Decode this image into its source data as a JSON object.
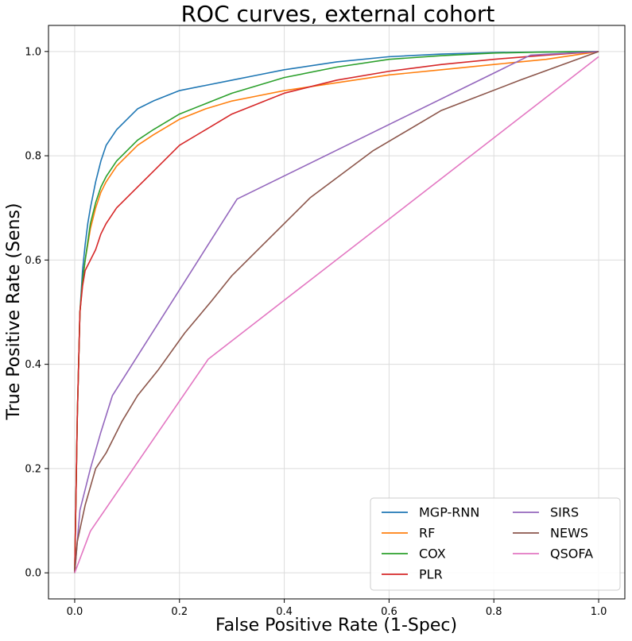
{
  "chart_data": {
    "type": "line",
    "title": "ROC curves, external cohort",
    "xlabel": "False Positive Rate (1-Spec)",
    "ylabel": "True Positive Rate (Sens)",
    "xlim": [
      -0.05,
      1.05
    ],
    "ylim": [
      -0.05,
      1.05
    ],
    "xticks": [
      0.0,
      0.2,
      0.4,
      0.6,
      0.8,
      1.0
    ],
    "xtick_labels": [
      "0.0",
      "0.2",
      "0.4",
      "0.6",
      "0.8",
      "1.0"
    ],
    "yticks": [
      0.0,
      0.2,
      0.4,
      0.6,
      0.8,
      1.0
    ],
    "ytick_labels": [
      "0.0",
      "0.2",
      "0.4",
      "0.6",
      "0.8",
      "1.0"
    ],
    "grid": true,
    "legend_position": "lower-right",
    "legend_columns": 2,
    "series": [
      {
        "name": "MGP-RNN",
        "color": "#1f77b4",
        "x": [
          0.0,
          0.005,
          0.01,
          0.015,
          0.02,
          0.025,
          0.03,
          0.04,
          0.05,
          0.06,
          0.08,
          0.1,
          0.12,
          0.15,
          0.2,
          0.25,
          0.3,
          0.35,
          0.4,
          0.5,
          0.6,
          0.7,
          0.8,
          0.9,
          1.0
        ],
        "y": [
          0.0,
          0.3,
          0.5,
          0.58,
          0.63,
          0.67,
          0.7,
          0.75,
          0.79,
          0.82,
          0.85,
          0.87,
          0.89,
          0.905,
          0.925,
          0.935,
          0.945,
          0.955,
          0.965,
          0.98,
          0.99,
          0.995,
          0.998,
          0.999,
          1.0
        ]
      },
      {
        "name": "RF",
        "color": "#ff7f0e",
        "x": [
          0.0,
          0.005,
          0.01,
          0.015,
          0.02,
          0.03,
          0.04,
          0.05,
          0.06,
          0.08,
          0.1,
          0.12,
          0.15,
          0.2,
          0.25,
          0.3,
          0.35,
          0.4,
          0.5,
          0.6,
          0.7,
          0.8,
          0.9,
          1.0
        ],
        "y": [
          0.0,
          0.3,
          0.5,
          0.56,
          0.6,
          0.66,
          0.7,
          0.73,
          0.75,
          0.78,
          0.8,
          0.82,
          0.84,
          0.87,
          0.89,
          0.905,
          0.915,
          0.925,
          0.94,
          0.955,
          0.965,
          0.975,
          0.985,
          1.0
        ]
      },
      {
        "name": "COX",
        "color": "#2ca02c",
        "x": [
          0.0,
          0.005,
          0.01,
          0.015,
          0.02,
          0.03,
          0.04,
          0.05,
          0.06,
          0.08,
          0.1,
          0.12,
          0.15,
          0.2,
          0.25,
          0.3,
          0.35,
          0.4,
          0.5,
          0.6,
          0.7,
          0.8,
          0.9,
          1.0
        ],
        "y": [
          0.0,
          0.3,
          0.5,
          0.56,
          0.6,
          0.67,
          0.71,
          0.74,
          0.76,
          0.79,
          0.81,
          0.83,
          0.85,
          0.88,
          0.9,
          0.92,
          0.935,
          0.95,
          0.97,
          0.985,
          0.992,
          0.997,
          0.999,
          1.0
        ]
      },
      {
        "name": "PLR",
        "color": "#d62728",
        "x": [
          0.0,
          0.005,
          0.01,
          0.015,
          0.02,
          0.03,
          0.04,
          0.05,
          0.06,
          0.08,
          0.1,
          0.12,
          0.15,
          0.2,
          0.25,
          0.3,
          0.35,
          0.4,
          0.5,
          0.6,
          0.7,
          0.8,
          0.9,
          1.0
        ],
        "y": [
          0.0,
          0.3,
          0.5,
          0.55,
          0.58,
          0.6,
          0.62,
          0.65,
          0.67,
          0.7,
          0.72,
          0.74,
          0.77,
          0.82,
          0.85,
          0.88,
          0.9,
          0.92,
          0.945,
          0.962,
          0.975,
          0.985,
          0.993,
          1.0
        ]
      },
      {
        "name": "SIRS",
        "color": "#9467bd",
        "x": [
          0.0,
          0.01,
          0.03,
          0.05,
          0.072,
          0.31,
          0.87,
          1.0
        ],
        "y": [
          0.0,
          0.12,
          0.2,
          0.27,
          0.34,
          0.717,
          0.993,
          1.0
        ]
      },
      {
        "name": "NEWS",
        "color": "#8c564b",
        "x": [
          0.0,
          0.005,
          0.02,
          0.04,
          0.06,
          0.09,
          0.12,
          0.16,
          0.21,
          0.26,
          0.3,
          0.35,
          0.45,
          0.57,
          0.7,
          0.85,
          1.0
        ],
        "y": [
          0.0,
          0.06,
          0.13,
          0.2,
          0.23,
          0.29,
          0.34,
          0.39,
          0.46,
          0.52,
          0.57,
          0.62,
          0.72,
          0.81,
          0.887,
          0.945,
          1.0
        ]
      },
      {
        "name": "QSOFA",
        "color": "#e377c2",
        "x": [
          0.0,
          0.03,
          0.255,
          1.0
        ],
        "y": [
          0.0,
          0.08,
          0.41,
          0.99
        ]
      }
    ]
  }
}
